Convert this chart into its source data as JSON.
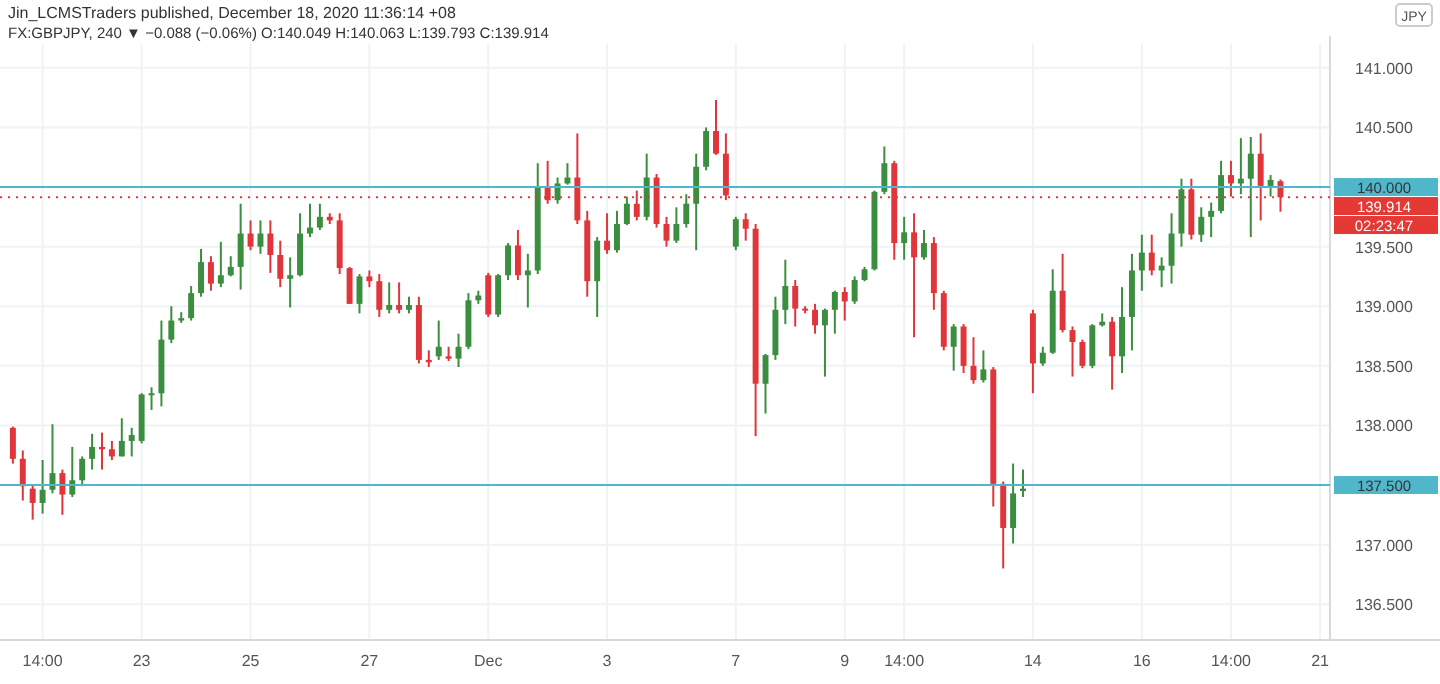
{
  "chart_data": {
    "type": "candlestick",
    "title": "Jin_LCMSTraders published, December 18, 2020 11:36:14 +08",
    "subtitle": "FX:GBPJPY, 240 ▼ −0.088 (−0.06%) O:140.049 H:140.063 L:139.793 C:139.914",
    "ylabel": "JPY",
    "annotations": [
      "02:23:47"
    ],
    "categories": [
      null,
      null,
      null,
      "14:00",
      null,
      null,
      null,
      null,
      null,
      null,
      null,
      null,
      null,
      "23",
      null,
      null,
      null,
      null,
      null,
      null,
      null,
      null,
      null,
      null,
      "25",
      null,
      null,
      null,
      null,
      null,
      null,
      null,
      null,
      null,
      null,
      null,
      "27",
      null,
      null,
      null,
      null,
      null,
      null,
      null,
      null,
      null,
      null,
      null,
      "Dec",
      null,
      null,
      null,
      null,
      null,
      null,
      null,
      null,
      null,
      null,
      null,
      "3",
      null,
      null,
      null,
      null,
      null,
      null,
      null,
      null,
      null,
      null,
      null,
      null,
      "7",
      null,
      null,
      null,
      null,
      null,
      null,
      null,
      null,
      null,
      null,
      "9",
      null,
      null,
      null,
      null,
      null,
      "14:00",
      null,
      null,
      null,
      null,
      null,
      null,
      null,
      null,
      null,
      null,
      null,
      null,
      "14",
      null,
      null,
      null,
      null,
      null,
      null,
      null,
      null,
      null,
      null,
      "16",
      null,
      null,
      null,
      null,
      null,
      null,
      null,
      null,
      "14:00",
      null,
      null,
      null,
      null,
      null,
      null,
      null,
      null,
      "21"
    ],
    "ohlc": [
      [
        137.98,
        137.99,
        137.68,
        137.72
      ],
      [
        137.72,
        137.79,
        137.37,
        137.49
      ],
      [
        137.47,
        137.5,
        137.21,
        137.35
      ],
      [
        137.35,
        137.71,
        137.26,
        137.46
      ],
      [
        137.46,
        138.01,
        137.43,
        137.6
      ],
      [
        137.6,
        137.63,
        137.25,
        137.42
      ],
      [
        137.42,
        137.82,
        137.4,
        137.54
      ],
      [
        137.54,
        137.74,
        137.49,
        137.72
      ],
      [
        137.72,
        137.93,
        137.63,
        137.82
      ],
      [
        137.82,
        137.94,
        137.63,
        137.8
      ],
      [
        137.8,
        137.87,
        137.71,
        137.74
      ],
      [
        137.74,
        138.06,
        137.74,
        137.87
      ],
      [
        137.87,
        137.98,
        137.74,
        137.92
      ],
      [
        137.87,
        138.27,
        137.85,
        138.26
      ],
      [
        138.26,
        138.32,
        138.13,
        138.27
      ],
      [
        138.27,
        138.88,
        138.16,
        138.72
      ],
      [
        138.72,
        139,
        138.69,
        138.88
      ],
      [
        138.88,
        138.95,
        138.86,
        138.9
      ],
      [
        138.9,
        139.17,
        138.88,
        139.11
      ],
      [
        139.11,
        139.48,
        139.08,
        139.37
      ],
      [
        139.37,
        139.42,
        139.13,
        139.19
      ],
      [
        139.19,
        139.54,
        139.16,
        139.26
      ],
      [
        139.26,
        139.42,
        139.25,
        139.33
      ],
      [
        139.33,
        139.86,
        139.14,
        139.61
      ],
      [
        139.61,
        139.72,
        139.47,
        139.5
      ],
      [
        139.5,
        139.72,
        139.44,
        139.61
      ],
      [
        139.61,
        139.72,
        139.28,
        139.43
      ],
      [
        139.43,
        139.55,
        139.16,
        139.23
      ],
      [
        139.23,
        139.41,
        138.99,
        139.26
      ],
      [
        139.26,
        139.78,
        139.25,
        139.61
      ],
      [
        139.61,
        139.86,
        139.58,
        139.66
      ],
      [
        139.66,
        139.86,
        139.64,
        139.75
      ],
      [
        139.75,
        139.78,
        139.69,
        139.72
      ],
      [
        139.72,
        139.78,
        139.27,
        139.32
      ],
      [
        139.32,
        139.33,
        139.02,
        139.02
      ],
      [
        139.02,
        139.27,
        138.94,
        139.25
      ],
      [
        139.25,
        139.3,
        139.16,
        139.21
      ],
      [
        139.21,
        139.27,
        138.91,
        138.97
      ],
      [
        138.97,
        139.2,
        138.94,
        139.01
      ],
      [
        139.01,
        139.2,
        138.94,
        138.97
      ],
      [
        138.97,
        139.08,
        138.94,
        139.01
      ],
      [
        139.01,
        139.08,
        138.52,
        138.55
      ],
      [
        138.55,
        138.63,
        138.49,
        138.53
      ],
      [
        138.58,
        138.88,
        138.55,
        138.66
      ],
      [
        138.58,
        138.66,
        138.54,
        138.56
      ],
      [
        138.56,
        138.77,
        138.49,
        138.66
      ],
      [
        138.66,
        139.11,
        138.64,
        139.05
      ],
      [
        139.05,
        139.13,
        139.02,
        139.09
      ],
      [
        139.26,
        139.28,
        138.91,
        138.93
      ],
      [
        138.93,
        139.27,
        138.91,
        139.26
      ],
      [
        139.26,
        139.53,
        139.22,
        139.51
      ],
      [
        139.51,
        139.64,
        139.22,
        139.26
      ],
      [
        139.26,
        139.44,
        138.99,
        139.3
      ],
      [
        139.3,
        140.2,
        139.27,
        140
      ],
      [
        140,
        140.22,
        139.86,
        139.89
      ],
      [
        139.89,
        140.08,
        139.86,
        140.03
      ],
      [
        140.03,
        140.2,
        140.02,
        140.08
      ],
      [
        140.08,
        140.45,
        139.69,
        139.72
      ],
      [
        139.72,
        139.8,
        139.08,
        139.21
      ],
      [
        139.21,
        139.58,
        138.91,
        139.55
      ],
      [
        139.55,
        139.78,
        139.44,
        139.47
      ],
      [
        139.47,
        139.8,
        139.45,
        139.69
      ],
      [
        139.69,
        139.92,
        139.68,
        139.86
      ],
      [
        139.86,
        139.97,
        139.72,
        139.75
      ],
      [
        139.75,
        140.28,
        139.72,
        140.08
      ],
      [
        140.08,
        140.11,
        139.66,
        139.69
      ],
      [
        139.69,
        139.75,
        139.5,
        139.55
      ],
      [
        139.55,
        139.83,
        139.53,
        139.69
      ],
      [
        139.69,
        139.94,
        139.66,
        139.86
      ],
      [
        139.86,
        140.28,
        139.47,
        140.17
      ],
      [
        140.17,
        140.5,
        140.14,
        140.47
      ],
      [
        140.47,
        140.73,
        140.27,
        140.28
      ],
      [
        140.28,
        140.45,
        139.89,
        139.93
      ],
      [
        139.5,
        139.75,
        139.47,
        139.73
      ],
      [
        139.73,
        139.78,
        139.55,
        139.65
      ],
      [
        139.65,
        139.69,
        137.91,
        138.35
      ],
      [
        138.35,
        138.6,
        138.1,
        138.59
      ],
      [
        138.59,
        139.08,
        138.55,
        138.97
      ],
      [
        138.97,
        139.39,
        138.85,
        139.17
      ],
      [
        139.17,
        139.22,
        138.83,
        138.98
      ],
      [
        138.98,
        139,
        138.94,
        138.97
      ],
      [
        138.97,
        139.02,
        138.77,
        138.84
      ],
      [
        138.84,
        138.98,
        138.41,
        138.97
      ],
      [
        138.97,
        139.13,
        138.77,
        139.12
      ],
      [
        139.12,
        139.16,
        138.88,
        139.04
      ],
      [
        139.04,
        139.25,
        139.02,
        139.22
      ],
      [
        139.22,
        139.33,
        139.21,
        139.31
      ],
      [
        139.31,
        139.97,
        139.3,
        139.96
      ],
      [
        139.96,
        140.34,
        139.94,
        140.2
      ],
      [
        140.2,
        140.22,
        139.39,
        139.53
      ],
      [
        139.53,
        139.75,
        139.39,
        139.62
      ],
      [
        139.62,
        139.78,
        138.74,
        139.41
      ],
      [
        139.41,
        139.64,
        139.39,
        139.53
      ],
      [
        139.53,
        139.58,
        138.97,
        139.11
      ],
      [
        139.11,
        139.13,
        138.63,
        138.66
      ],
      [
        138.66,
        138.85,
        138.46,
        138.83
      ],
      [
        138.83,
        138.85,
        138.44,
        138.5
      ],
      [
        138.5,
        138.74,
        138.35,
        138.38
      ],
      [
        138.38,
        138.63,
        138.36,
        138.47
      ],
      [
        138.47,
        138.49,
        137.32,
        137.51
      ],
      [
        137.51,
        137.53,
        136.8,
        137.14
      ],
      [
        137.14,
        137.68,
        137.01,
        137.43
      ],
      [
        137.45,
        137.63,
        137.4,
        137.47
      ],
      [
        138.94,
        138.97,
        138.27,
        138.52
      ],
      [
        138.52,
        138.66,
        138.5,
        138.61
      ],
      [
        138.61,
        139.31,
        138.6,
        139.13
      ],
      [
        139.13,
        139.44,
        138.78,
        138.8
      ],
      [
        138.8,
        138.83,
        138.41,
        138.7
      ],
      [
        138.7,
        138.72,
        138.48,
        138.5
      ],
      [
        138.5,
        138.85,
        138.48,
        138.84
      ],
      [
        138.84,
        138.94,
        138.83,
        138.87
      ],
      [
        138.87,
        138.91,
        138.3,
        138.58
      ],
      [
        138.58,
        139.16,
        138.44,
        138.91
      ],
      [
        138.91,
        139.44,
        138.63,
        139.3
      ],
      [
        139.3,
        139.6,
        139.13,
        139.45
      ],
      [
        139.45,
        139.6,
        139.26,
        139.3
      ],
      [
        139.3,
        139.41,
        139.16,
        139.34
      ],
      [
        139.34,
        139.78,
        139.19,
        139.61
      ],
      [
        139.61,
        140.07,
        139.5,
        139.98
      ],
      [
        139.98,
        140.07,
        139.56,
        139.6
      ],
      [
        139.6,
        139.83,
        139.54,
        139.75
      ],
      [
        139.75,
        139.87,
        139.58,
        139.8
      ],
      [
        139.8,
        140.22,
        139.78,
        140.1
      ],
      [
        140.1,
        140.22,
        139.92,
        140.03
      ],
      [
        140.03,
        140.41,
        139.94,
        140.07
      ],
      [
        140.07,
        140.42,
        139.58,
        140.28
      ],
      [
        140.28,
        140.45,
        139.72,
        140.01
      ],
      [
        140.01,
        140.1,
        139.92,
        140.06
      ],
      [
        140.049,
        140.063,
        139.793,
        139.914
      ],
      null,
      null,
      null,
      null
    ],
    "ylim": [
      136.2,
      141.2
    ],
    "yticks": [
      {
        "value": 136.5,
        "label": "136.500"
      },
      {
        "value": 137,
        "label": "137.000"
      },
      {
        "value": 138,
        "label": "138.000"
      },
      {
        "value": 138.5,
        "label": "138.500"
      },
      {
        "value": 139,
        "label": "139.000"
      },
      {
        "value": 139.5,
        "label": "139.500"
      },
      {
        "value": 140.5,
        "label": "140.500"
      },
      {
        "value": 141,
        "label": "141.000"
      }
    ],
    "ref_lines": [
      {
        "axis": "y",
        "value": 140,
        "label": "140.000",
        "color": "#4fb7c9",
        "line_style": "solid"
      },
      {
        "axis": "y",
        "value": 137.5,
        "label": "137.500",
        "color": "#4fb7c9",
        "line_style": "solid"
      },
      {
        "axis": "y",
        "value": 139.914,
        "label": "139.914",
        "color": "#e53935",
        "line_style": "dotted"
      }
    ],
    "grid": true
  }
}
